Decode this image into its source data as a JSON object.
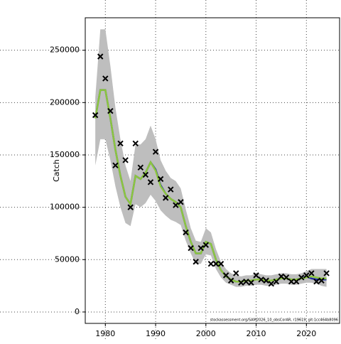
{
  "chart_data": {
    "type": "line",
    "y_label": "Catch",
    "x": [
      1978,
      1979,
      1980,
      1981,
      1982,
      1983,
      1984,
      1985,
      1986,
      1987,
      1988,
      1989,
      1990,
      1991,
      1992,
      1993,
      1994,
      1995,
      1996,
      1997,
      1998,
      1999,
      2000,
      2001,
      2002,
      2003,
      2004,
      2005,
      2006,
      2007,
      2008,
      2009,
      2010,
      2011,
      2012,
      2013,
      2014,
      2015,
      2016,
      2017,
      2018,
      2019,
      2020,
      2021,
      2022,
      2023,
      2024
    ],
    "band": {
      "color": "#bebebe",
      "upper": [
        205000,
        270000,
        270000,
        235000,
        195000,
        165000,
        140000,
        125000,
        160000,
        160000,
        165000,
        178000,
        165000,
        145000,
        135000,
        128000,
        125000,
        118000,
        98000,
        80000,
        68000,
        67000,
        80000,
        76000,
        60000,
        48000,
        41000,
        37000,
        35000,
        34000,
        35000,
        35000,
        37000,
        36000,
        35000,
        35000,
        36000,
        37000,
        37000,
        36000,
        36000,
        37000,
        39000,
        41000,
        41000,
        41000,
        41000
      ],
      "lower": [
        140000,
        165000,
        165000,
        145000,
        120000,
        100000,
        85000,
        82000,
        103000,
        100000,
        104000,
        112000,
        106000,
        97000,
        92000,
        88000,
        86000,
        83000,
        68000,
        56000,
        46000,
        46000,
        55000,
        54000,
        41000,
        33000,
        28000,
        26000,
        24000,
        24000,
        25000,
        25000,
        26000,
        26000,
        25000,
        25000,
        26000,
        27000,
        27000,
        26000,
        26000,
        27000,
        28000,
        28000,
        27000,
        25000,
        24000
      ]
    },
    "series": [
      {
        "color": "#1f2fa0",
        "values": [
          185000,
          212000,
          212000,
          185000,
          155000,
          130000,
          110000,
          103000,
          130000,
          127000,
          133000,
          143000,
          136000,
          121000,
          113000,
          108000,
          105000,
          100000,
          82000,
          67000,
          56000,
          56000,
          67000,
          65000,
          50000,
          40000,
          34000,
          31000,
          29000,
          29000,
          30000,
          30000,
          31000,
          31000,
          30000,
          30000,
          31000,
          32000,
          32000,
          31000,
          31000,
          32000,
          34000,
          32000,
          31000,
          31000,
          31000
        ]
      },
      {
        "color": "#8cc63f",
        "values": [
          185000,
          212000,
          212000,
          185000,
          155000,
          130000,
          110000,
          103000,
          130000,
          127000,
          133000,
          143000,
          135000,
          120000,
          113000,
          108000,
          105000,
          100000,
          82000,
          67000,
          56000,
          56000,
          67000,
          65000,
          50000,
          40000,
          34000,
          31000,
          29000,
          29000,
          30000,
          30000,
          31000,
          31000,
          30000,
          30000,
          31000,
          32000,
          32000,
          31000,
          31000,
          32000,
          33000,
          34000,
          33000,
          32000,
          32000
        ]
      }
    ],
    "observed": {
      "color": "#000000",
      "values": [
        188000,
        244000,
        223000,
        192000,
        140000,
        161000,
        145000,
        100000,
        161000,
        138000,
        131000,
        124000,
        153000,
        127000,
        109000,
        117000,
        102000,
        105000,
        76000,
        61000,
        48000,
        61000,
        64000,
        46000,
        46000,
        46000,
        35000,
        30000,
        37000,
        28000,
        29000,
        28000,
        35000,
        31000,
        30000,
        27000,
        29000,
        34000,
        33000,
        29000,
        29000,
        33000,
        35000,
        37000,
        29000,
        30000,
        37000
      ]
    },
    "xlim": [
      1976,
      2026.6
    ],
    "ylim": [
      -10900,
      281000
    ],
    "xticks": [
      1980,
      1990,
      2000,
      2010,
      2020
    ],
    "yticks": [
      0,
      50000,
      100000,
      150000,
      200000,
      250000
    ],
    "grid": true,
    "footnote": "stockassessment.org/SAM2026_10_obsCorAR, r19619, git:1cc464b8096"
  }
}
